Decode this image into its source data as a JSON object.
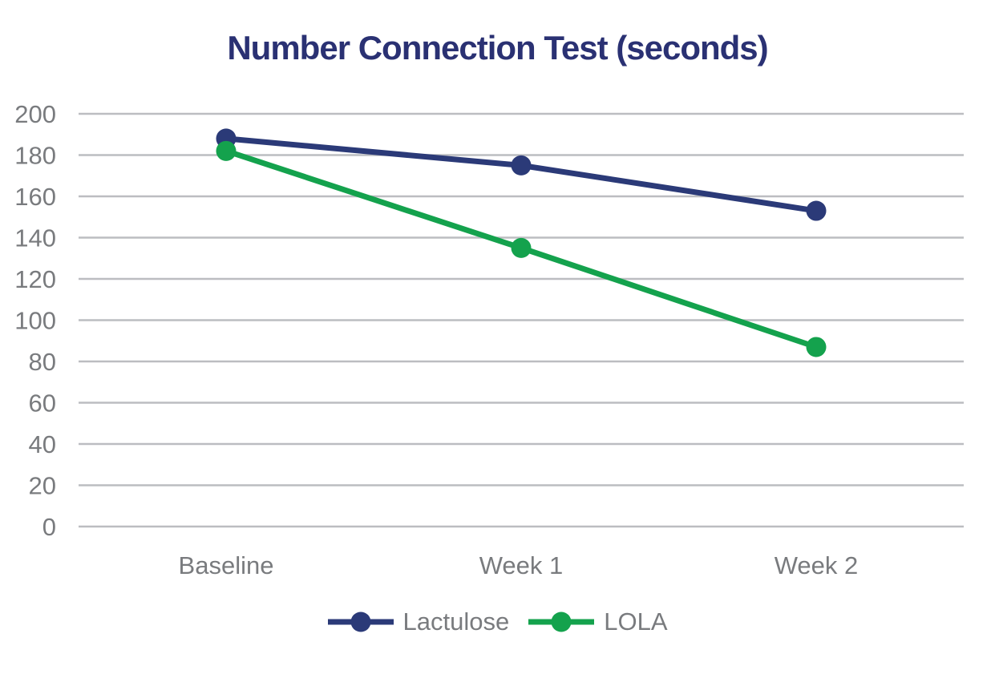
{
  "title": "Number Connection Test (seconds)",
  "chart_data": {
    "type": "line",
    "title": "Number Connection Test (seconds)",
    "categories": [
      "Baseline",
      "Week 1",
      "Week 2"
    ],
    "series": [
      {
        "name": "Lactulose",
        "color": "#2B3A78",
        "values": [
          188,
          175,
          153
        ]
      },
      {
        "name": "LOLA",
        "color": "#14A24D",
        "values": [
          182,
          135,
          87
        ]
      }
    ],
    "ylabel": "",
    "xlabel": "",
    "ylim": [
      0,
      200
    ],
    "ytick_step": 20,
    "grid": true,
    "legend_position": "bottom"
  },
  "colors": {
    "title": "#2A3173",
    "grid": "#BCBDC1",
    "axis_text": "#797B7E",
    "background": "#FFFFFF"
  }
}
